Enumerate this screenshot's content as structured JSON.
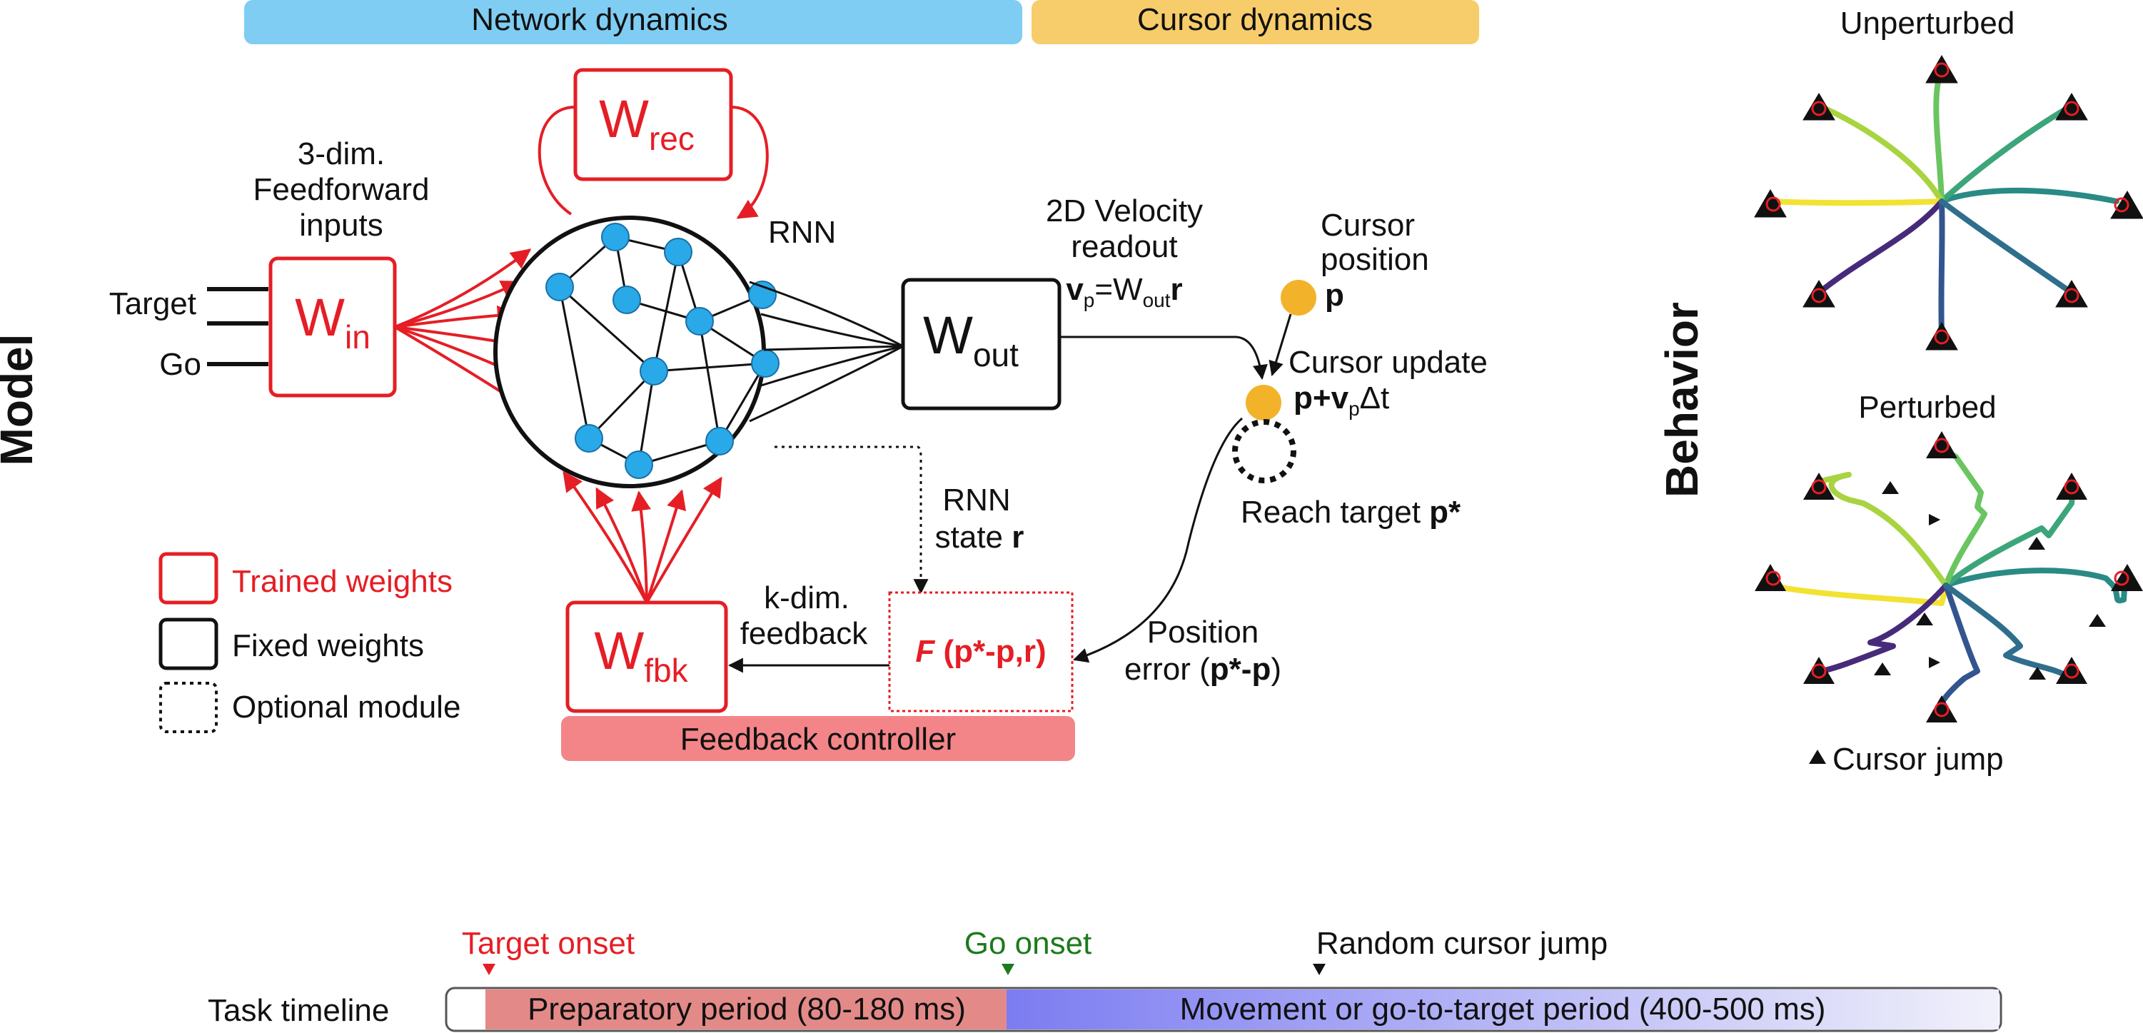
{
  "banners": {
    "network_dynamics": "Network dynamics",
    "cursor_dynamics": "Cursor dynamics",
    "feedback_controller": "Feedback controller"
  },
  "side_labels": {
    "model": "Model",
    "behavior": "Behavior"
  },
  "inputs": {
    "header_line1": "3-dim.",
    "header_line2": "Feedforward",
    "header_line3": "inputs",
    "target": "Target",
    "go": "Go"
  },
  "weights": {
    "w_in": {
      "base": "W",
      "sub": "in"
    },
    "w_rec": {
      "base": "W",
      "sub": "rec"
    },
    "w_out": {
      "base": "W",
      "sub": "out"
    },
    "w_fbk": {
      "base": "W",
      "sub": "fbk"
    }
  },
  "rnn": {
    "label": "RNN",
    "state_line1": "RNN",
    "state_line2": "state ",
    "state_symbol": "r"
  },
  "readout": {
    "line1": "2D Velocity",
    "line2": "readout",
    "eq_v": "v",
    "eq_p_sub": "p",
    "eq_equals": "=W",
    "eq_out_sub": "out",
    "eq_r": "r"
  },
  "cursor": {
    "position_line1": "Cursor",
    "position_line2": "position",
    "position_symbol": "p",
    "update_label": "Cursor update",
    "update_p": "p+",
    "update_v": "v",
    "update_p_sub": "p",
    "update_dt": "Δt",
    "reach_label": "Reach target ",
    "reach_symbol": "p*",
    "error_line1": "Position",
    "error_line2": "error (",
    "error_symbol": "p*-p",
    "error_close": ")"
  },
  "feedback": {
    "line1": "k-dim.",
    "line2": "feedback",
    "func": "F",
    "args_open": " (",
    "args_p": "p*-p",
    "args_comma": ",",
    "args_r": "r",
    "args_close": ")"
  },
  "legend": {
    "trained": "Trained weights",
    "fixed": "Fixed weights",
    "optional": "Optional module"
  },
  "behavior": {
    "unperturbed_title": "Unperturbed",
    "perturbed_title": "Perturbed",
    "cursor_jump": "Cursor jump"
  },
  "timeline": {
    "label": "Task timeline",
    "target_onset": "Target onset",
    "go_onset": "Go onset",
    "random_jump": "Random cursor jump",
    "preparatory": "Preparatory period (80-180 ms)",
    "movement": "Movement or go-to-target period (400-500 ms)"
  },
  "colors": {
    "trained": "#e51e25",
    "node": "#29a9e8",
    "cursor": "#f2b32a",
    "banner_network": "#7fcdf3",
    "banner_cursor": "#f7cd6b",
    "banner_feedback": "#f38588",
    "prep_period": "#e38a88",
    "move_period_start": "#7c7cf2",
    "go_onset": "#1d7a1d"
  }
}
